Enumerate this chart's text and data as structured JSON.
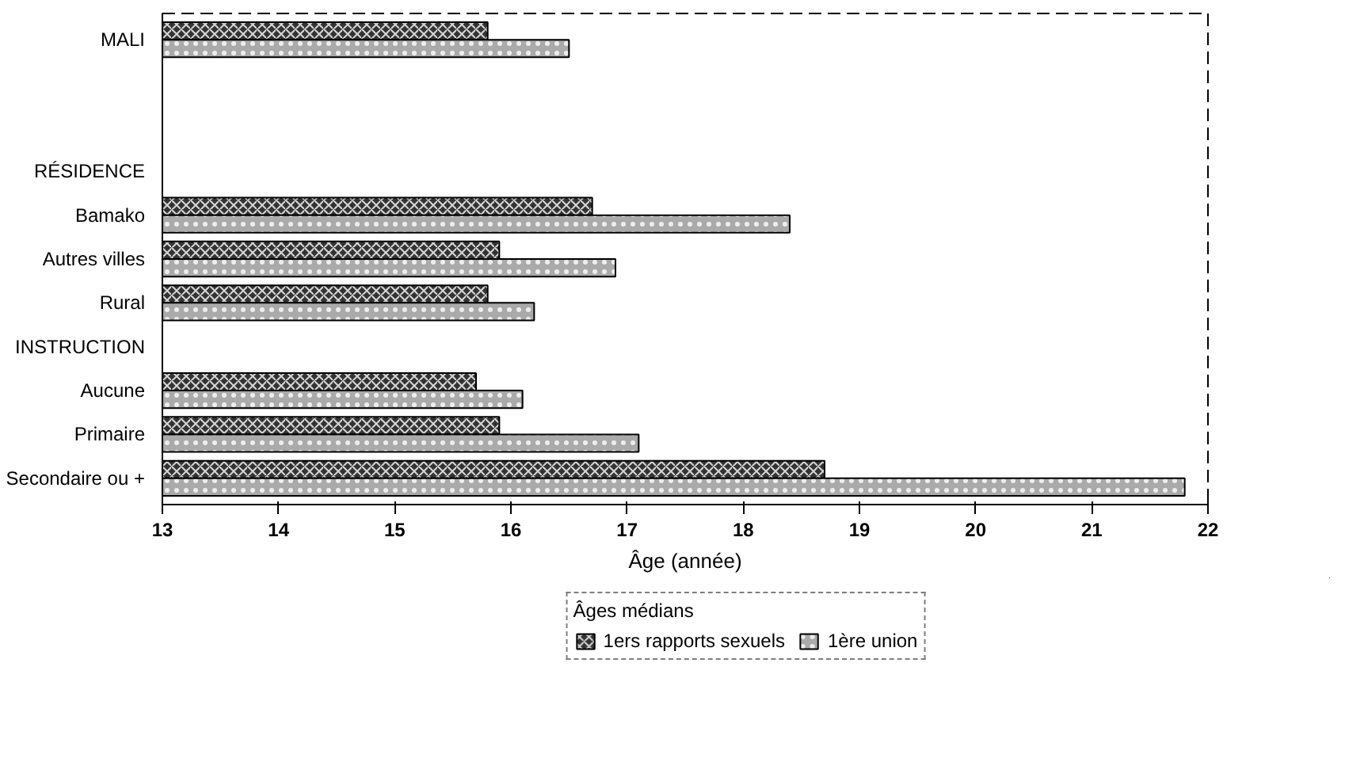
{
  "chart_data": {
    "type": "bar",
    "orientation": "horizontal",
    "categories": [
      "MALI",
      null,
      null,
      "RÉSIDENCE",
      "Bamako",
      "Autres villes",
      "Rural",
      "INSTRUCTION",
      "Aucune",
      "Primaire",
      "Secondaire ou +"
    ],
    "series": [
      {
        "name": "1ers rapports sexuels",
        "color": "#333333",
        "values": [
          15.8,
          null,
          null,
          null,
          16.7,
          15.9,
          15.8,
          null,
          15.7,
          15.9,
          18.7
        ]
      },
      {
        "name": "1ère union",
        "color": "#aaaaaa",
        "values": [
          16.5,
          null,
          null,
          null,
          18.4,
          16.9,
          16.2,
          null,
          16.1,
          17.1,
          21.8
        ]
      }
    ],
    "xlabel": "Âge (année)",
    "legend_title": "Âges médians",
    "legend": "bottom",
    "xlim": [
      13,
      22
    ],
    "xticks": [
      13,
      14,
      15,
      16,
      17,
      18,
      19,
      20,
      21,
      22
    ],
    "grid": false
  }
}
